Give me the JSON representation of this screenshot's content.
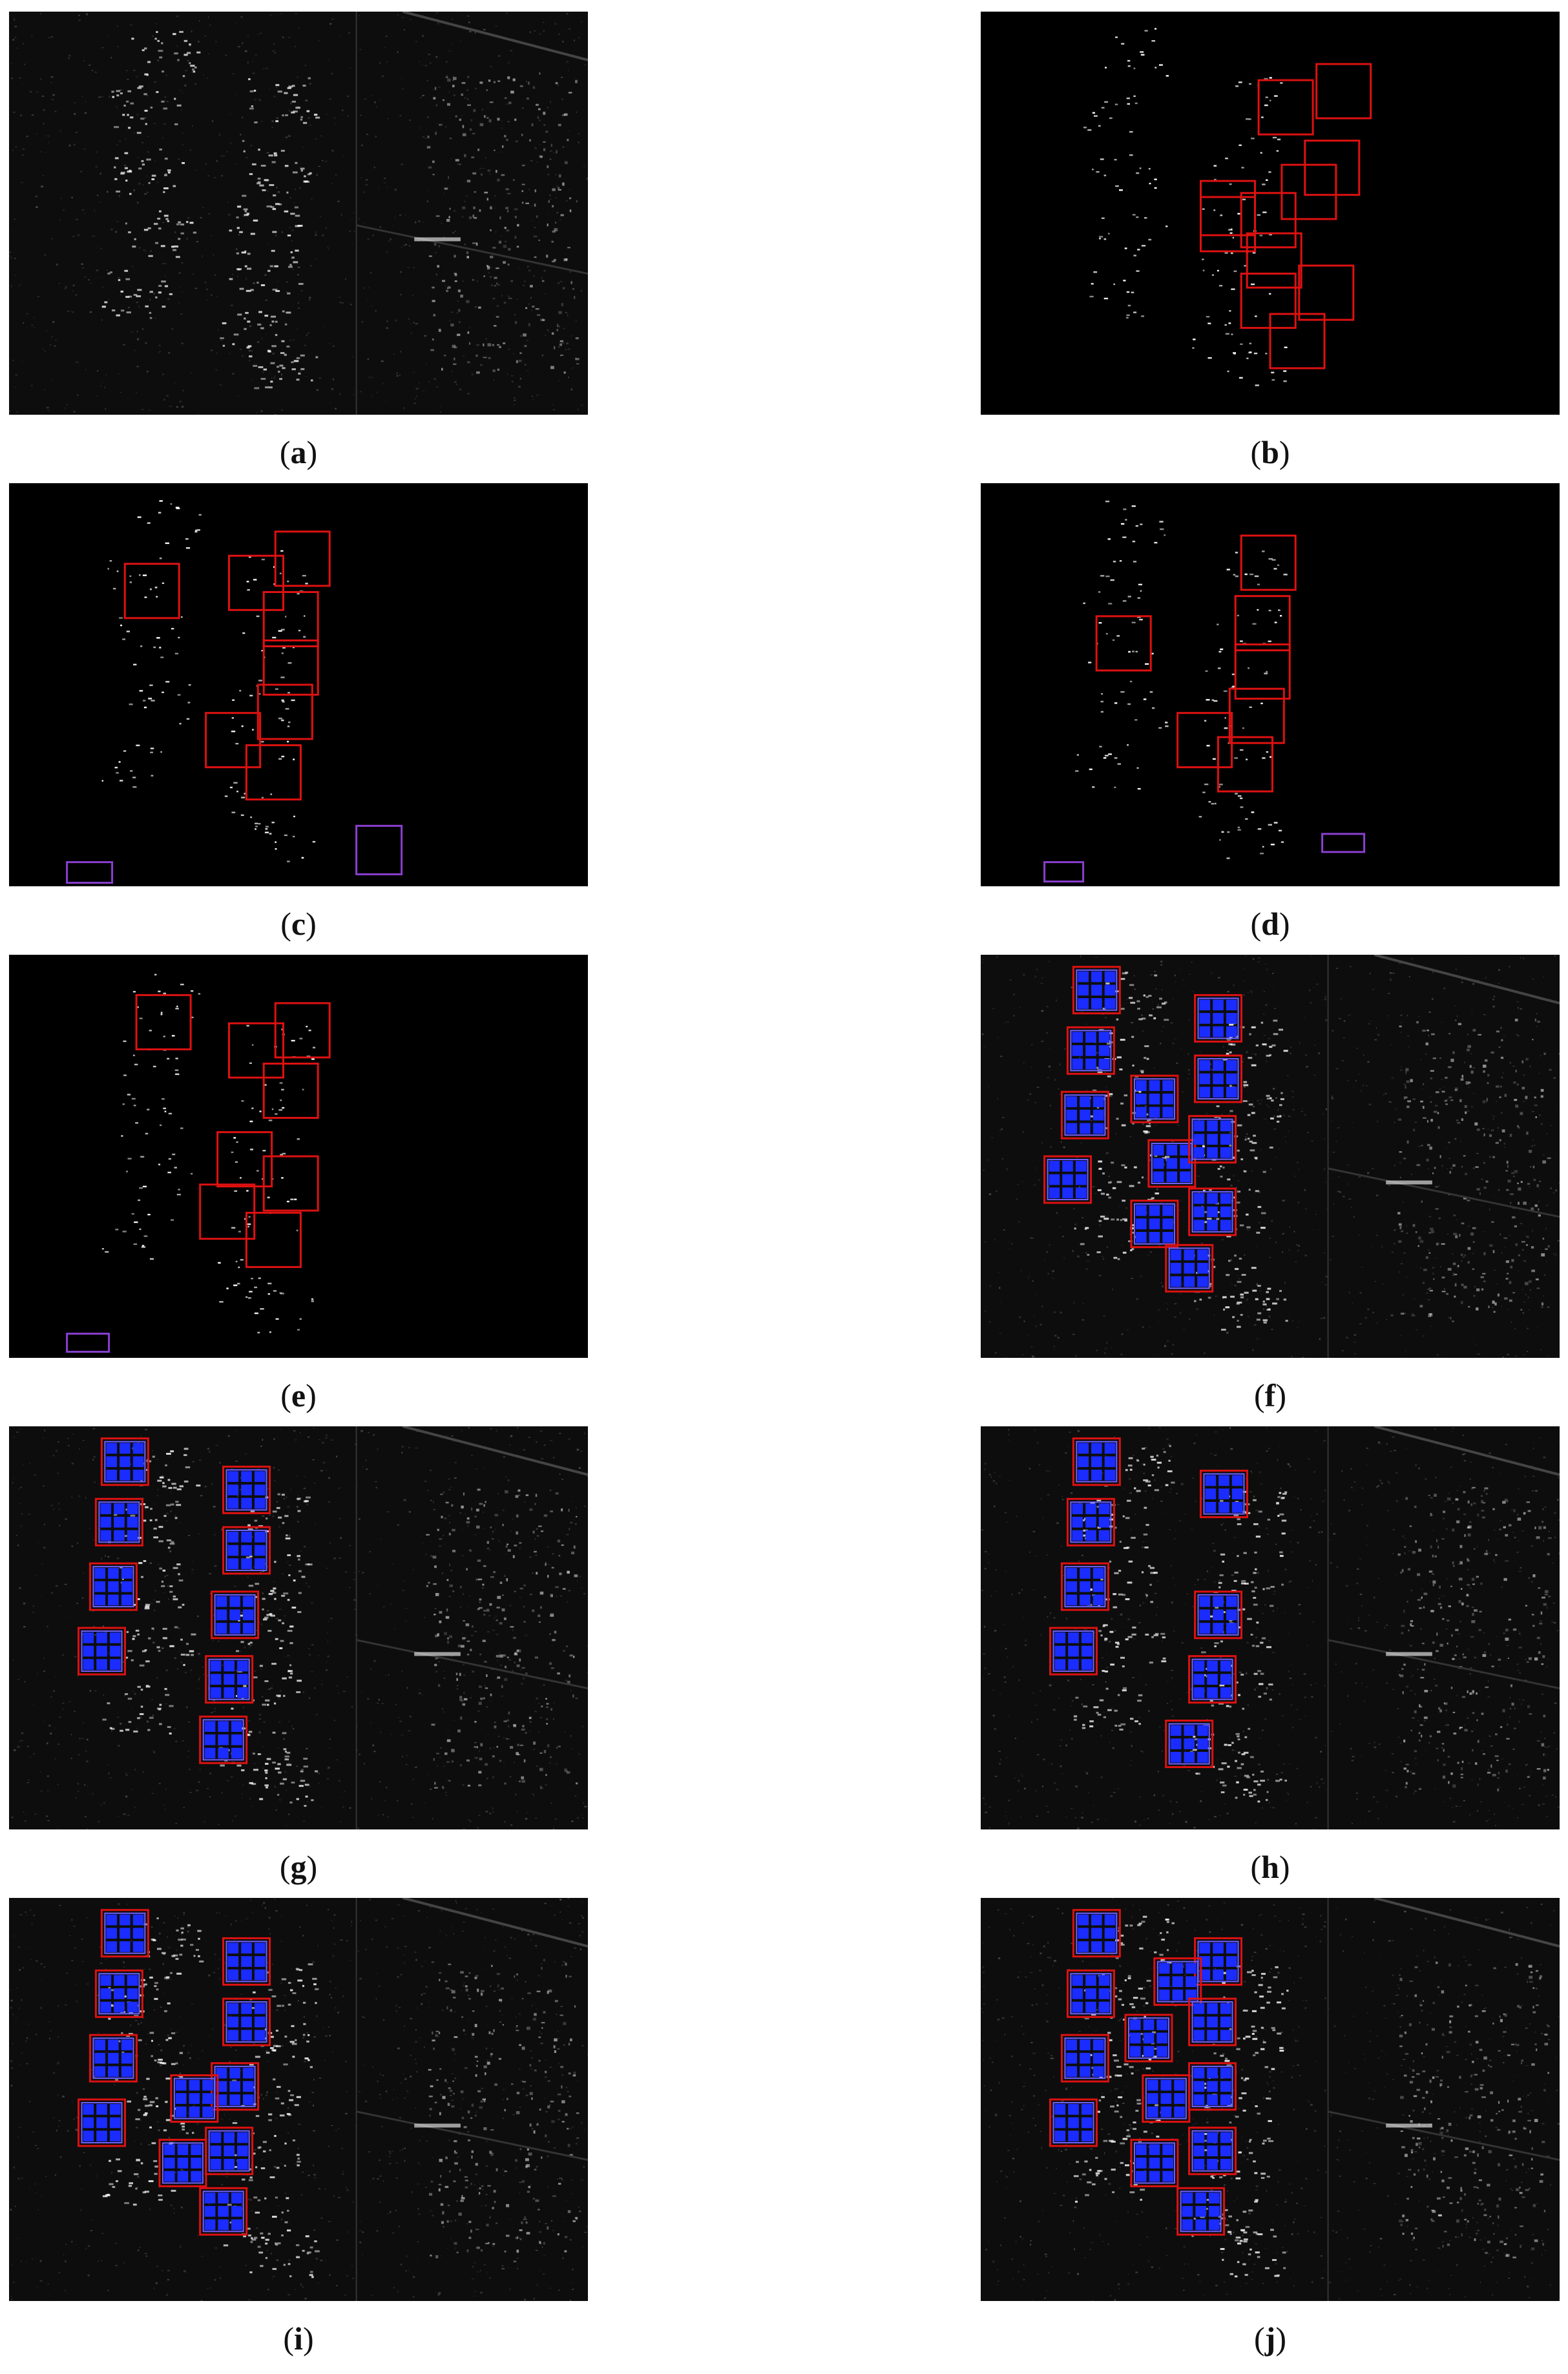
{
  "figure": {
    "panels": [
      {
        "id": "a",
        "label_open": "(",
        "letter": "a",
        "label_close": ")",
        "kind": "sar-original",
        "boxes": []
      },
      {
        "id": "b",
        "label_open": "(",
        "letter": "b",
        "label_close": ")",
        "kind": "binary-detection",
        "boxes": [
          "red"
        ]
      },
      {
        "id": "c",
        "label_open": "(",
        "letter": "c",
        "label_close": ")",
        "kind": "binary-detection",
        "boxes": [
          "red",
          "purple"
        ]
      },
      {
        "id": "d",
        "label_open": "(",
        "letter": "d",
        "label_close": ")",
        "kind": "binary-detection",
        "boxes": [
          "red",
          "purple"
        ]
      },
      {
        "id": "e",
        "label_open": "(",
        "letter": "e",
        "label_close": ")",
        "kind": "binary-detection",
        "boxes": [
          "red",
          "purple"
        ]
      },
      {
        "id": "f",
        "label_open": "(",
        "letter": "f",
        "label_close": ")",
        "kind": "sar-overlay",
        "boxes": [
          "red",
          "blue-grid"
        ]
      },
      {
        "id": "g",
        "label_open": "(",
        "letter": "g",
        "label_close": ")",
        "kind": "sar-overlay",
        "boxes": [
          "red",
          "blue-grid"
        ]
      },
      {
        "id": "h",
        "label_open": "(",
        "letter": "h",
        "label_close": ")",
        "kind": "sar-overlay",
        "boxes": [
          "red",
          "blue-grid"
        ]
      },
      {
        "id": "i",
        "label_open": "(",
        "letter": "i",
        "label_close": ")",
        "kind": "sar-overlay",
        "boxes": [
          "red",
          "blue-grid"
        ]
      },
      {
        "id": "j",
        "label_open": "(",
        "letter": "j",
        "label_close": ")",
        "kind": "sar-overlay",
        "boxes": [
          "red",
          "blue-grid"
        ]
      }
    ],
    "colors": {
      "background": "#000000",
      "speckle": "#ffffff",
      "box_red": "#dd1111",
      "box_purple": "#8a3fd0",
      "grid_blue": "#1a2cff",
      "caption_text": "#111111"
    }
  }
}
